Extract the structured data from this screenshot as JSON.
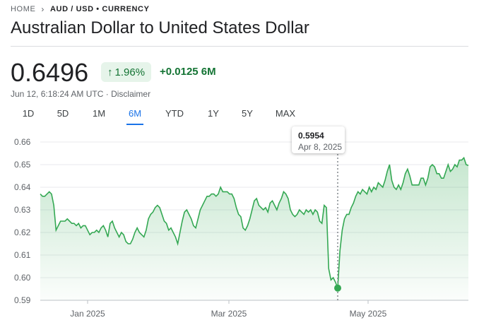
{
  "breadcrumb": {
    "home": "HOME",
    "current": "AUD / USD • CURRENCY"
  },
  "page": {
    "title": "Australian Dollar to United States Dollar",
    "price": "0.6496",
    "change_percent": "1.96%",
    "change_abs": "+0.0125 6M",
    "timestamp": "Jun 12, 6:18:24 AM UTC · Disclaimer"
  },
  "tabs": [
    "1D",
    "5D",
    "1M",
    "6M",
    "YTD",
    "1Y",
    "5Y",
    "MAX"
  ],
  "active_tab": "6M",
  "tooltip": {
    "value": "0.5954",
    "date": "Apr 8, 2025"
  },
  "colors": {
    "positive": "#137333",
    "line": "#34a853",
    "accent": "#1a73e8"
  },
  "chart_data": {
    "type": "area",
    "ylim": [
      0.59,
      0.66
    ],
    "yticks": [
      "0.66",
      "0.65",
      "0.64",
      "0.63",
      "0.62",
      "0.61",
      "0.60",
      "0.59"
    ],
    "xticks": [
      "Jan 2025",
      "Mar 2025",
      "May 2025"
    ],
    "highlight": {
      "date": "Apr 8, 2025",
      "value": 0.5954
    },
    "series": [
      {
        "values": [
          0.637,
          0.636,
          0.636,
          0.637,
          0.638,
          0.637,
          0.632,
          0.621,
          0.623,
          0.625,
          0.625,
          0.625,
          0.626,
          0.625,
          0.624,
          0.624,
          0.623,
          0.624,
          0.622,
          0.623,
          0.623,
          0.621,
          0.619,
          0.62,
          0.62,
          0.621,
          0.62,
          0.622,
          0.623,
          0.621,
          0.618,
          0.624,
          0.625,
          0.622,
          0.62,
          0.618,
          0.62,
          0.619,
          0.616,
          0.615,
          0.615,
          0.617,
          0.62,
          0.622,
          0.62,
          0.619,
          0.618,
          0.621,
          0.626,
          0.628,
          0.629,
          0.631,
          0.632,
          0.631,
          0.628,
          0.625,
          0.624,
          0.621,
          0.622,
          0.62,
          0.618,
          0.615,
          0.62,
          0.625,
          0.629,
          0.63,
          0.628,
          0.626,
          0.623,
          0.622,
          0.626,
          0.63,
          0.632,
          0.634,
          0.636,
          0.636,
          0.637,
          0.637,
          0.636,
          0.637,
          0.64,
          0.638,
          0.638,
          0.638,
          0.637,
          0.637,
          0.635,
          0.631,
          0.628,
          0.627,
          0.622,
          0.621,
          0.623,
          0.626,
          0.63,
          0.634,
          0.635,
          0.632,
          0.631,
          0.63,
          0.631,
          0.629,
          0.633,
          0.634,
          0.632,
          0.63,
          0.633,
          0.635,
          0.638,
          0.637,
          0.635,
          0.63,
          0.628,
          0.627,
          0.628,
          0.63,
          0.629,
          0.628,
          0.63,
          0.629,
          0.63,
          0.628,
          0.63,
          0.629,
          0.625,
          0.624,
          0.632,
          0.631,
          0.604,
          0.599,
          0.6,
          0.598,
          0.5954,
          0.612,
          0.621,
          0.626,
          0.628,
          0.628,
          0.631,
          0.633,
          0.636,
          0.638,
          0.637,
          0.639,
          0.638,
          0.637,
          0.64,
          0.638,
          0.64,
          0.639,
          0.642,
          0.641,
          0.64,
          0.643,
          0.647,
          0.65,
          0.643,
          0.64,
          0.639,
          0.641,
          0.639,
          0.642,
          0.646,
          0.648,
          0.645,
          0.641,
          0.641,
          0.641,
          0.641,
          0.644,
          0.644,
          0.641,
          0.644,
          0.649,
          0.65,
          0.649,
          0.646,
          0.646,
          0.644,
          0.644,
          0.647,
          0.65,
          0.647,
          0.648,
          0.65,
          0.649,
          0.652,
          0.652,
          0.653,
          0.65,
          0.6496
        ]
      }
    ]
  }
}
